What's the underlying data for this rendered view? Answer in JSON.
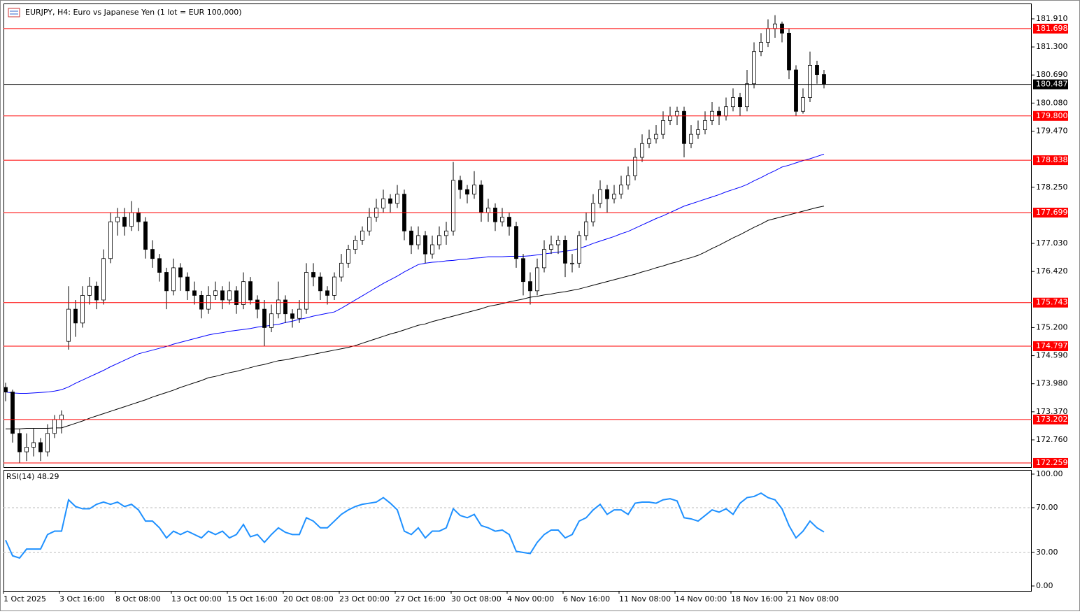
{
  "chart_data": {
    "type": "candlestick",
    "title": "EURJPY, H4:  Euro vs Japanese Yen (1 lot = EUR 100,000)",
    "categories": [
      "1 Oct 2025",
      null,
      null,
      null,
      null,
      null,
      null,
      null,
      "3 Oct 16:00",
      null,
      null,
      null,
      null,
      null,
      null,
      null,
      "8 Oct 08:00",
      null,
      null,
      null,
      null,
      null,
      null,
      null,
      "13 Oct 00:00",
      null,
      null,
      null,
      null,
      null,
      null,
      null,
      "15 Oct 16:00",
      null,
      null,
      null,
      null,
      null,
      null,
      null,
      "20 Oct 08:00",
      null,
      null,
      null,
      null,
      null,
      null,
      null,
      "23 Oct 00:00",
      null,
      null,
      null,
      null,
      null,
      null,
      null,
      "27 Oct 16:00",
      null,
      null,
      null,
      null,
      null,
      null,
      null,
      "30 Oct 08:00",
      null,
      null,
      null,
      null,
      null,
      null,
      null,
      "4 Nov 00:00",
      null,
      null,
      null,
      null,
      null,
      null,
      null,
      "6 Nov 16:00",
      null,
      null,
      null,
      null,
      null,
      null,
      null,
      "11 Nov 08:00",
      null,
      null,
      null,
      null,
      null,
      null,
      null,
      "14 Nov 00:00",
      null,
      null,
      null,
      null,
      null,
      null,
      null,
      "18 Nov 16:00",
      null,
      null,
      null,
      null,
      null,
      null,
      null,
      "21 Nov 08:00",
      null,
      null,
      null,
      null,
      null
    ],
    "candles": [
      [
        173.9,
        174.0,
        173.6,
        173.8
      ],
      [
        173.8,
        173.85,
        172.7,
        172.9
      ],
      [
        172.9,
        173.0,
        172.26,
        172.5
      ],
      [
        172.5,
        172.9,
        172.3,
        172.6
      ],
      [
        172.6,
        173.0,
        172.4,
        172.7
      ],
      [
        172.7,
        172.8,
        172.3,
        172.5
      ],
      [
        172.5,
        173.1,
        172.4,
        172.9
      ],
      [
        172.9,
        173.3,
        172.8,
        173.2
      ],
      [
        173.2,
        173.4,
        172.9,
        173.3
      ],
      [
        174.9,
        176.1,
        174.72,
        175.6
      ],
      [
        175.6,
        175.8,
        175.0,
        175.3
      ],
      [
        175.3,
        176.1,
        175.2,
        175.9
      ],
      [
        175.9,
        176.3,
        175.7,
        176.1
      ],
      [
        176.1,
        176.2,
        175.6,
        175.8
      ],
      [
        175.8,
        176.9,
        175.7,
        176.7
      ],
      [
        176.7,
        177.7,
        176.6,
        177.5
      ],
      [
        177.5,
        177.8,
        177.2,
        177.6
      ],
      [
        177.6,
        177.8,
        177.2,
        177.4
      ],
      [
        177.4,
        177.95,
        177.3,
        177.7
      ],
      [
        177.7,
        177.8,
        177.3,
        177.5
      ],
      [
        177.5,
        177.6,
        176.7,
        176.9
      ],
      [
        176.9,
        177.1,
        176.5,
        176.7
      ],
      [
        176.7,
        176.8,
        176.2,
        176.4
      ],
      [
        176.4,
        176.5,
        175.6,
        176.0
      ],
      [
        176.0,
        176.7,
        175.9,
        176.5
      ],
      [
        176.5,
        176.6,
        176.0,
        176.3
      ],
      [
        176.3,
        176.4,
        175.8,
        176.0
      ],
      [
        176.0,
        176.2,
        175.7,
        175.9
      ],
      [
        175.9,
        176.0,
        175.4,
        175.6
      ],
      [
        175.6,
        176.1,
        175.5,
        175.9
      ],
      [
        175.9,
        176.2,
        175.8,
        176.0
      ],
      [
        176.0,
        176.1,
        175.6,
        175.8
      ],
      [
        175.8,
        176.2,
        175.7,
        176.0
      ],
      [
        176.0,
        176.1,
        175.5,
        175.7
      ],
      [
        175.7,
        176.4,
        175.6,
        176.2
      ],
      [
        176.2,
        176.3,
        175.7,
        175.8
      ],
      [
        175.8,
        175.9,
        175.4,
        175.6
      ],
      [
        175.6,
        175.8,
        174.8,
        175.2
      ],
      [
        175.2,
        175.7,
        175.1,
        175.5
      ],
      [
        175.5,
        176.2,
        175.4,
        175.8
      ],
      [
        175.8,
        175.9,
        175.3,
        175.5
      ],
      [
        175.5,
        175.6,
        175.2,
        175.4
      ],
      [
        175.4,
        175.8,
        175.3,
        175.6
      ],
      [
        175.6,
        176.6,
        175.5,
        176.4
      ],
      [
        176.4,
        176.6,
        176.1,
        176.3
      ],
      [
        176.3,
        176.4,
        175.8,
        176.0
      ],
      [
        176.0,
        176.1,
        175.7,
        175.9
      ],
      [
        175.9,
        176.4,
        175.8,
        176.3
      ],
      [
        176.3,
        176.8,
        176.2,
        176.6
      ],
      [
        176.6,
        177.0,
        176.5,
        176.9
      ],
      [
        176.9,
        177.2,
        176.8,
        177.1
      ],
      [
        177.1,
        177.4,
        177.0,
        177.3
      ],
      [
        177.3,
        177.8,
        177.2,
        177.6
      ],
      [
        177.6,
        178.0,
        177.5,
        177.8
      ],
      [
        177.8,
        178.2,
        177.7,
        178.0
      ],
      [
        178.0,
        178.1,
        177.7,
        177.9
      ],
      [
        177.9,
        178.3,
        177.8,
        178.1
      ],
      [
        178.1,
        178.2,
        177.1,
        177.3
      ],
      [
        177.3,
        177.4,
        176.8,
        177.0
      ],
      [
        177.0,
        177.4,
        176.9,
        177.2
      ],
      [
        177.2,
        177.3,
        176.6,
        176.8
      ],
      [
        176.8,
        177.2,
        176.7,
        177.0
      ],
      [
        177.0,
        177.4,
        176.9,
        177.2
      ],
      [
        177.2,
        177.5,
        177.0,
        177.3
      ],
      [
        177.3,
        178.8,
        177.2,
        178.4
      ],
      [
        178.4,
        178.5,
        178.0,
        178.2
      ],
      [
        178.2,
        178.3,
        177.9,
        178.1
      ],
      [
        178.1,
        178.6,
        178.0,
        178.3
      ],
      [
        178.3,
        178.4,
        177.5,
        177.7
      ],
      [
        177.7,
        178.0,
        177.5,
        177.8
      ],
      [
        177.8,
        177.9,
        177.3,
        177.5
      ],
      [
        177.5,
        177.8,
        177.4,
        177.6
      ],
      [
        177.6,
        177.7,
        177.2,
        177.4
      ],
      [
        177.4,
        177.5,
        176.5,
        176.7
      ],
      [
        176.7,
        176.8,
        175.9,
        176.2
      ],
      [
        176.2,
        176.4,
        175.7,
        176.0
      ],
      [
        176.0,
        176.7,
        175.9,
        176.5
      ],
      [
        176.5,
        177.1,
        176.4,
        176.9
      ],
      [
        176.9,
        177.2,
        176.8,
        177.0
      ],
      [
        177.0,
        177.2,
        176.8,
        177.1
      ],
      [
        177.1,
        177.2,
        176.3,
        176.6
      ],
      [
        176.6,
        176.8,
        176.4,
        176.6
      ],
      [
        176.6,
        177.3,
        176.5,
        177.2
      ],
      [
        177.2,
        177.7,
        177.1,
        177.5
      ],
      [
        177.5,
        178.1,
        177.4,
        177.9
      ],
      [
        177.9,
        178.4,
        177.8,
        178.2
      ],
      [
        178.2,
        178.3,
        177.7,
        178.0
      ],
      [
        178.0,
        178.3,
        177.9,
        178.1
      ],
      [
        178.1,
        178.5,
        178.0,
        178.3
      ],
      [
        178.3,
        178.7,
        178.2,
        178.5
      ],
      [
        178.5,
        179.1,
        178.4,
        178.9
      ],
      [
        178.9,
        179.4,
        178.8,
        179.2
      ],
      [
        179.2,
        179.5,
        179.1,
        179.3
      ],
      [
        179.3,
        179.6,
        179.2,
        179.4
      ],
      [
        179.4,
        179.9,
        179.3,
        179.7
      ],
      [
        179.7,
        180.0,
        179.6,
        179.8
      ],
      [
        179.8,
        180.0,
        179.6,
        179.9
      ],
      [
        179.9,
        180.0,
        178.9,
        179.2
      ],
      [
        179.2,
        179.6,
        179.1,
        179.4
      ],
      [
        179.4,
        179.7,
        179.3,
        179.5
      ],
      [
        179.5,
        179.9,
        179.4,
        179.7
      ],
      [
        179.7,
        180.1,
        179.6,
        179.9
      ],
      [
        179.9,
        180.0,
        179.6,
        179.8
      ],
      [
        179.8,
        180.2,
        179.7,
        180.0
      ],
      [
        180.0,
        180.4,
        179.9,
        180.2
      ],
      [
        180.2,
        180.3,
        179.8,
        180.0
      ],
      [
        180.0,
        180.8,
        179.9,
        180.5
      ],
      [
        180.5,
        181.4,
        180.4,
        181.2
      ],
      [
        181.2,
        181.6,
        181.1,
        181.4
      ],
      [
        181.4,
        181.9,
        181.3,
        181.7
      ],
      [
        181.7,
        181.99,
        181.5,
        181.8
      ],
      [
        181.8,
        181.85,
        181.4,
        181.6
      ],
      [
        181.6,
        181.7,
        180.6,
        180.8
      ],
      [
        180.8,
        180.9,
        179.8,
        179.9
      ],
      [
        179.9,
        180.4,
        179.85,
        180.2
      ],
      [
        180.2,
        181.2,
        180.1,
        180.9
      ],
      [
        180.9,
        181.0,
        180.5,
        180.7
      ],
      [
        180.7,
        180.8,
        180.4,
        180.49
      ]
    ],
    "up_color": "#ffffff",
    "down_color": "#000000",
    "moving_averages": [
      {
        "color": "#0000ff",
        "values": [
          173.8,
          173.78,
          173.77,
          173.77,
          173.78,
          173.79,
          173.8,
          173.82,
          173.85,
          173.91,
          173.99,
          174.06,
          174.13,
          174.2,
          174.27,
          174.35,
          174.42,
          174.49,
          174.56,
          174.63,
          174.67,
          174.71,
          174.75,
          174.79,
          174.84,
          174.88,
          174.92,
          174.96,
          175.0,
          175.04,
          175.07,
          175.09,
          175.12,
          175.14,
          175.16,
          175.18,
          175.21,
          175.23,
          175.25,
          175.27,
          175.31,
          175.34,
          175.38,
          175.41,
          175.45,
          175.48,
          175.51,
          175.54,
          175.62,
          175.71,
          175.8,
          175.89,
          175.98,
          176.07,
          176.16,
          176.24,
          176.32,
          176.41,
          176.49,
          176.57,
          176.6,
          176.62,
          176.63,
          176.65,
          176.66,
          176.68,
          176.69,
          176.71,
          176.72,
          176.74,
          176.74,
          176.74,
          176.75,
          176.75,
          176.75,
          176.76,
          176.78,
          176.8,
          176.82,
          176.84,
          176.86,
          176.88,
          176.92,
          176.97,
          177.03,
          177.08,
          177.13,
          177.18,
          177.24,
          177.29,
          177.36,
          177.43,
          177.5,
          177.57,
          177.63,
          177.7,
          177.77,
          177.84,
          177.89,
          177.94,
          177.99,
          178.04,
          178.09,
          178.15,
          178.2,
          178.25,
          178.31,
          178.39,
          178.46,
          178.54,
          178.61,
          178.69,
          178.73,
          178.78,
          178.83,
          178.87,
          178.92,
          178.97
        ]
      },
      {
        "color": "#000000",
        "values": [
          173.0,
          173.0,
          173.0,
          173.01,
          173.01,
          173.01,
          173.01,
          173.02,
          173.02,
          173.07,
          173.12,
          173.17,
          173.23,
          173.28,
          173.33,
          173.38,
          173.43,
          173.48,
          173.53,
          173.58,
          173.63,
          173.69,
          173.74,
          173.79,
          173.84,
          173.9,
          173.95,
          174.0,
          174.05,
          174.11,
          174.14,
          174.18,
          174.22,
          174.25,
          174.29,
          174.33,
          174.37,
          174.4,
          174.44,
          174.48,
          174.5,
          174.53,
          174.56,
          174.59,
          174.62,
          174.65,
          174.68,
          174.71,
          174.74,
          174.77,
          174.81,
          174.86,
          174.91,
          174.96,
          175.01,
          175.06,
          175.1,
          175.15,
          175.2,
          175.25,
          175.28,
          175.33,
          175.37,
          175.41,
          175.45,
          175.49,
          175.53,
          175.57,
          175.61,
          175.66,
          175.69,
          175.72,
          175.76,
          175.79,
          175.82,
          175.86,
          175.88,
          175.91,
          175.93,
          175.96,
          175.98,
          176.01,
          176.04,
          176.08,
          176.12,
          176.16,
          176.2,
          176.24,
          176.28,
          176.32,
          176.36,
          176.41,
          176.45,
          176.5,
          176.54,
          176.59,
          176.63,
          176.68,
          176.72,
          176.77,
          176.84,
          176.92,
          176.99,
          177.07,
          177.15,
          177.22,
          177.3,
          177.38,
          177.45,
          177.53,
          177.57,
          177.61,
          177.65,
          177.69,
          177.73,
          177.77,
          177.81,
          177.84
        ]
      }
    ],
    "levels": [
      181.698,
      {
        "value": 179.8,
        "label": "179.800"
      },
      178.838,
      177.699,
      175.743,
      174.797,
      173.202,
      172.259
    ],
    "level_color": "#ff0000",
    "current_price": 180.487,
    "ylim": [
      172.167,
      182.244
    ],
    "yticks": [
      {
        "value": 181.91,
        "label": "181.910"
      },
      {
        "value": 181.3,
        "label": "181.300"
      },
      {
        "value": 180.69,
        "label": "180.690"
      },
      {
        "value": 180.08,
        "label": "180.080"
      },
      {
        "value": 179.47,
        "label": "179.470"
      },
      {
        "value": 178.25,
        "label": "178.250"
      },
      {
        "value": 177.03,
        "label": "177.030"
      },
      {
        "value": 176.42,
        "label": "176.420"
      },
      {
        "value": 175.2,
        "label": "175.200"
      },
      {
        "value": 174.59,
        "label": "174.590"
      },
      {
        "value": 173.98,
        "label": "173.980"
      },
      {
        "value": 173.37,
        "label": "173.370"
      },
      {
        "value": 172.76,
        "label": "172.760"
      }
    ],
    "indicator": {
      "label": "RSI(14) 48.29",
      "color": "#1e90ff",
      "values": [
        41,
        27,
        25,
        33,
        33,
        33,
        46,
        49,
        49,
        77,
        71,
        69,
        69,
        73,
        75,
        73,
        75,
        71,
        73,
        68,
        58,
        58,
        52,
        43,
        49,
        46,
        49,
        46,
        43,
        49,
        46,
        49,
        43,
        46,
        55,
        44,
        46,
        39,
        46,
        52,
        48,
        46,
        46,
        61,
        58,
        52,
        52,
        58,
        64,
        68,
        71,
        73,
        74,
        75,
        79,
        74,
        68,
        49,
        46,
        52,
        43,
        49,
        49,
        52,
        69,
        63,
        61,
        64,
        54,
        52,
        49,
        50,
        46,
        31,
        30,
        29,
        39,
        46,
        50,
        50,
        43,
        46,
        58,
        61,
        68,
        73,
        64,
        68,
        68,
        64,
        74,
        75,
        75,
        74,
        77,
        78,
        76,
        61,
        60,
        58,
        63,
        68,
        66,
        69,
        64,
        74,
        79,
        80,
        83,
        79,
        77,
        69,
        54,
        43,
        49,
        58,
        52,
        48.29
      ],
      "ylim": [
        -4.4,
        103.1
      ],
      "yticks": [
        {
          "value": 100,
          "label": "100.00"
        },
        {
          "value": 70,
          "label": "70.00"
        },
        {
          "value": 30,
          "label": "30.00"
        },
        {
          "value": 0,
          "label": "0.00"
        }
      ],
      "guide_levels": [
        70,
        30
      ]
    }
  }
}
